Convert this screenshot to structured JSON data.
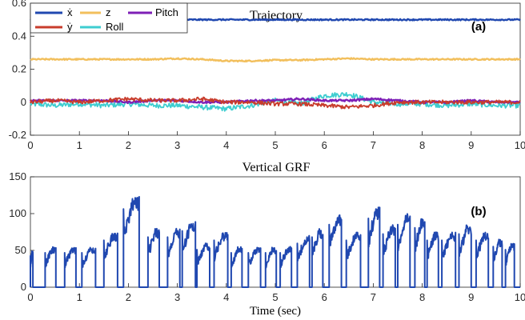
{
  "chart_data": [
    {
      "type": "line",
      "title": "Trajectory",
      "panel_label": "(a)",
      "xlabel": "",
      "ylabel": "",
      "xlim": [
        0,
        10
      ],
      "ylim": [
        -0.2,
        0.6
      ],
      "xticks": [
        0,
        1,
        2,
        3,
        4,
        5,
        6,
        7,
        8,
        9,
        10
      ],
      "yticks": [
        -0.2,
        0,
        0.2,
        0.4,
        0.6
      ],
      "ytick_labels": [
        "-0.2",
        "0",
        "0.2",
        "0.4",
        "0.6"
      ],
      "legend_position": "top-left",
      "x": [
        0,
        0.5,
        1,
        1.5,
        2,
        2.5,
        3,
        3.5,
        4,
        4.5,
        5,
        5.5,
        6,
        6.5,
        7,
        7.5,
        8,
        8.5,
        9,
        9.5,
        10
      ],
      "series": [
        {
          "name": "ẋ",
          "color": "#2048b0",
          "values": [
            0.5,
            0.5,
            0.5,
            0.5,
            0.5,
            0.5,
            0.5,
            0.5,
            0.5,
            0.5,
            0.5,
            0.5,
            0.5,
            0.5,
            0.5,
            0.5,
            0.5,
            0.5,
            0.5,
            0.5,
            0.5
          ]
        },
        {
          "name": "ẏ",
          "color": "#c83c2c",
          "values": [
            0.0,
            0.01,
            0.0,
            0.01,
            0.02,
            0.01,
            0.01,
            0.02,
            0.0,
            0.0,
            -0.01,
            -0.01,
            -0.02,
            -0.03,
            -0.02,
            0.0,
            0.0,
            0.0,
            0.0,
            0.0,
            0.0
          ]
        },
        {
          "name": "z",
          "color": "#f2bf5c",
          "values": [
            0.26,
            0.26,
            0.26,
            0.26,
            0.26,
            0.26,
            0.265,
            0.26,
            0.25,
            0.25,
            0.255,
            0.255,
            0.26,
            0.265,
            0.26,
            0.26,
            0.26,
            0.26,
            0.26,
            0.26,
            0.26
          ]
        },
        {
          "name": "Roll",
          "color": "#3ecdd0",
          "values": [
            -0.01,
            -0.02,
            -0.01,
            -0.02,
            -0.01,
            -0.02,
            -0.02,
            -0.03,
            -0.04,
            -0.02,
            0.01,
            -0.01,
            0.04,
            0.05,
            0.0,
            -0.01,
            -0.01,
            -0.02,
            -0.01,
            -0.02,
            -0.02
          ]
        },
        {
          "name": "Pitch",
          "color": "#7e1fb6",
          "values": [
            0.01,
            0.01,
            0.01,
            0.01,
            0.0,
            0.01,
            0.01,
            0.0,
            0.0,
            0.01,
            0.01,
            0.02,
            0.01,
            0.01,
            0.02,
            0.01,
            0.0,
            0.0,
            0.01,
            0.0,
            0.0
          ]
        }
      ]
    },
    {
      "type": "line",
      "title": "Vertical GRF",
      "panel_label": "(b)",
      "xlabel": "Time (sec)",
      "ylabel": "",
      "xlim": [
        0,
        10
      ],
      "ylim": [
        0,
        150
      ],
      "xticks": [
        0,
        1,
        2,
        3,
        4,
        5,
        6,
        7,
        8,
        9,
        10
      ],
      "yticks": [
        0,
        50,
        100,
        150
      ],
      "ytick_labels": [
        "0",
        "50",
        "100",
        "150"
      ],
      "series": [
        {
          "name": "",
          "color": "#2048b0",
          "stance_start": [
            0.0,
            0.3,
            0.7,
            1.05,
            1.5,
            1.9,
            2.4,
            2.8,
            3.1,
            3.4,
            3.75,
            4.1,
            4.45,
            4.8,
            5.1,
            5.45,
            5.75,
            6.1,
            6.45,
            6.9,
            7.2,
            7.5,
            7.85,
            8.1,
            8.4,
            8.75,
            9.1,
            9.45,
            9.7
          ],
          "stance_end": [
            0.05,
            0.52,
            0.93,
            1.33,
            1.78,
            2.22,
            2.63,
            3.05,
            3.37,
            3.66,
            4.03,
            4.32,
            4.7,
            5.02,
            5.33,
            5.7,
            5.97,
            6.35,
            6.74,
            7.13,
            7.45,
            7.75,
            8.05,
            8.33,
            8.68,
            9.0,
            9.35,
            9.63,
            9.88
          ],
          "peak_force": [
            50,
            55,
            55,
            55,
            75,
            125,
            80,
            80,
            90,
            60,
            75,
            55,
            55,
            55,
            55,
            70,
            80,
            100,
            75,
            110,
            85,
            100,
            95,
            75,
            75,
            85,
            75,
            65,
            60
          ]
        }
      ]
    }
  ],
  "legend": [
    {
      "label": "ẋ",
      "color": "#2048b0"
    },
    {
      "label": "z",
      "color": "#f2bf5c"
    },
    {
      "label": "Pitch",
      "color": "#7e1fb6"
    },
    {
      "label": "ẏ",
      "color": "#c83c2c"
    },
    {
      "label": "Roll",
      "color": "#3ecdd0"
    }
  ]
}
